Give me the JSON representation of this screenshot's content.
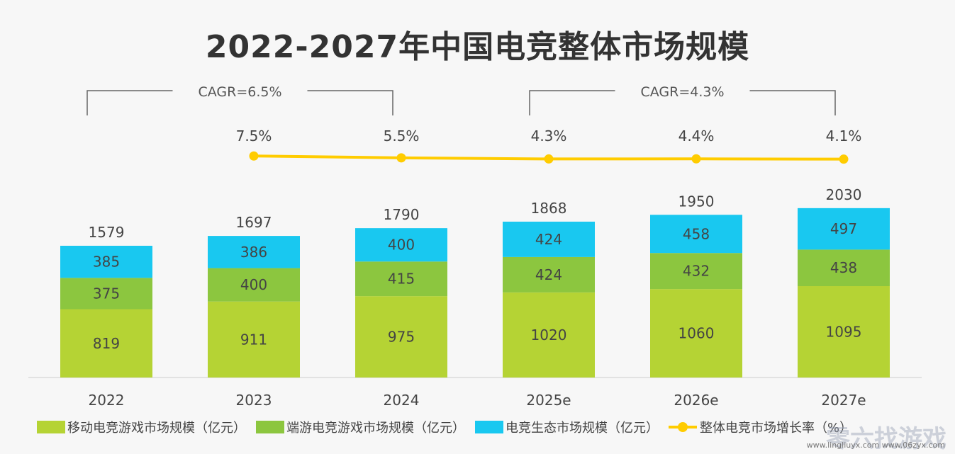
{
  "chart_data": {
    "type": "bar",
    "stacked": true,
    "title": "2022-2027年中国电竞整体市场规模",
    "categories": [
      "2022",
      "2023",
      "2024",
      "2025e",
      "2026e",
      "2027e"
    ],
    "series": [
      {
        "name": "移动电竞游戏市场规模（亿元）",
        "color": "#b5d334",
        "values": [
          819,
          911,
          975,
          1020,
          1060,
          1095
        ]
      },
      {
        "name": "端游电竞游戏市场规模（亿元）",
        "color": "#8cc63f",
        "values": [
          375,
          400,
          415,
          424,
          432,
          438
        ]
      },
      {
        "name": "电竞生态市场规模（亿元）",
        "color": "#19c8f0",
        "values": [
          385,
          386,
          400,
          424,
          458,
          497
        ]
      }
    ],
    "totals": [
      1579,
      1697,
      1790,
      1868,
      1950,
      2030
    ],
    "line_series": {
      "name": "整体电竞市场增长率（%）",
      "color": "#ffcc00",
      "type": "line",
      "categories": [
        "2023",
        "2024",
        "2025e",
        "2026e",
        "2027e"
      ],
      "values": [
        7.5,
        5.5,
        4.3,
        4.4,
        4.1
      ],
      "labels": [
        "7.5%",
        "5.5%",
        "4.3%",
        "4.4%",
        "4.1%"
      ]
    },
    "annotations": [
      {
        "text": "CAGR=6.5%",
        "from": "2022",
        "to": "2024"
      },
      {
        "text": "CAGR=4.3%",
        "from": "2025e",
        "to": "2027e"
      }
    ],
    "legend_position": "bottom",
    "grid": false
  },
  "watermark": {
    "text": "零六找游戏",
    "url": "www.lingliuyx.com  www.06zyx.com"
  }
}
